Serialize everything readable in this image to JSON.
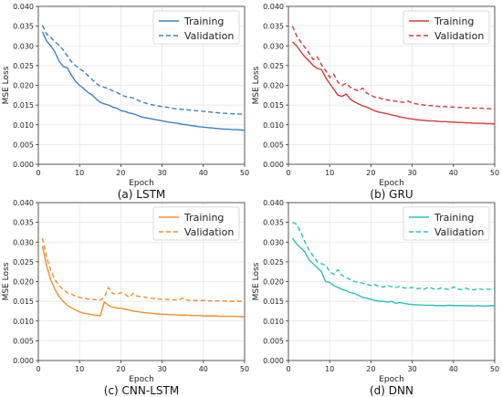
{
  "chart_data": [
    {
      "type": "line",
      "caption": "(a) LSTM",
      "xlabel": "Epoch",
      "ylabel": "MSE Loss",
      "xlim": [
        0,
        50
      ],
      "ylim": [
        0,
        0.04
      ],
      "xticks": [
        "0",
        "10",
        "20",
        "30",
        "40",
        "50"
      ],
      "yticks": [
        "0.000",
        "0.005",
        "0.010",
        "0.015",
        "0.020",
        "0.025",
        "0.030",
        "0.035",
        "0.040"
      ],
      "grid": true,
      "legend_position": "top-right",
      "color": "#3b82c4",
      "series": [
        {
          "name": "Training",
          "style": "solid",
          "x": [
            1,
            2,
            3,
            4,
            5,
            6,
            7,
            8,
            9,
            10,
            11,
            12,
            13,
            14,
            15,
            16,
            17,
            18,
            19,
            20,
            21,
            22,
            23,
            24,
            25,
            26,
            27,
            28,
            29,
            30,
            31,
            32,
            33,
            34,
            35,
            36,
            37,
            38,
            39,
            40,
            41,
            42,
            43,
            44,
            45,
            46,
            47,
            48,
            49,
            50
          ],
          "values": [
            0.0336,
            0.0312,
            0.03,
            0.0285,
            0.0262,
            0.0248,
            0.0245,
            0.0226,
            0.021,
            0.02,
            0.0192,
            0.0182,
            0.0176,
            0.0166,
            0.0157,
            0.0153,
            0.015,
            0.0145,
            0.0142,
            0.0136,
            0.0134,
            0.013,
            0.0128,
            0.0124,
            0.012,
            0.0118,
            0.0116,
            0.0114,
            0.0112,
            0.011,
            0.0108,
            0.0106,
            0.0105,
            0.0103,
            0.0101,
            0.01,
            0.0098,
            0.0097,
            0.0095,
            0.0094,
            0.0093,
            0.0092,
            0.0091,
            0.009,
            0.0089,
            0.0089,
            0.0088,
            0.0088,
            0.0087,
            0.0086
          ]
        },
        {
          "name": "Validation",
          "style": "dashed",
          "x": [
            1,
            2,
            3,
            4,
            5,
            6,
            7,
            8,
            9,
            10,
            11,
            12,
            13,
            14,
            15,
            16,
            17,
            18,
            19,
            20,
            21,
            22,
            23,
            24,
            25,
            26,
            27,
            28,
            29,
            30,
            31,
            32,
            33,
            34,
            35,
            36,
            37,
            38,
            39,
            40,
            41,
            42,
            43,
            44,
            45,
            46,
            47,
            48,
            49,
            50
          ],
          "values": [
            0.0352,
            0.033,
            0.0322,
            0.031,
            0.0302,
            0.029,
            0.0275,
            0.026,
            0.025,
            0.0242,
            0.0235,
            0.0225,
            0.0215,
            0.0205,
            0.0198,
            0.0195,
            0.0192,
            0.0186,
            0.0182,
            0.0176,
            0.0172,
            0.017,
            0.0168,
            0.0163,
            0.0158,
            0.0155,
            0.0152,
            0.015,
            0.0148,
            0.0146,
            0.0145,
            0.0143,
            0.0141,
            0.014,
            0.0139,
            0.0138,
            0.0137,
            0.0136,
            0.0135,
            0.0134,
            0.0133,
            0.0132,
            0.0131,
            0.013,
            0.0129,
            0.0129,
            0.0128,
            0.0128,
            0.0127,
            0.0127
          ]
        }
      ]
    },
    {
      "type": "line",
      "caption": "(b) GRU",
      "xlabel": "Epoch",
      "ylabel": "MSE Loss",
      "xlim": [
        0,
        50
      ],
      "ylim": [
        0,
        0.04
      ],
      "xticks": [
        "0",
        "10",
        "20",
        "30",
        "40",
        "50"
      ],
      "yticks": [
        "0.000",
        "0.005",
        "0.010",
        "0.015",
        "0.020",
        "0.025",
        "0.030",
        "0.035",
        "0.040"
      ],
      "grid": true,
      "legend_position": "top-right",
      "color": "#d63a3a",
      "series": [
        {
          "name": "Training",
          "style": "solid",
          "x": [
            1,
            2,
            3,
            4,
            5,
            6,
            7,
            8,
            9,
            10,
            11,
            12,
            13,
            14,
            15,
            16,
            17,
            18,
            19,
            20,
            21,
            22,
            23,
            24,
            25,
            26,
            27,
            28,
            29,
            30,
            31,
            32,
            33,
            34,
            35,
            36,
            37,
            38,
            39,
            40,
            41,
            42,
            43,
            44,
            45,
            46,
            47,
            48,
            49,
            50
          ],
          "values": [
            0.031,
            0.03,
            0.0285,
            0.0272,
            0.0262,
            0.025,
            0.0243,
            0.024,
            0.022,
            0.0205,
            0.019,
            0.0175,
            0.0172,
            0.0178,
            0.0165,
            0.0158,
            0.0153,
            0.0148,
            0.0145,
            0.014,
            0.0135,
            0.0132,
            0.013,
            0.0128,
            0.0125,
            0.0123,
            0.012,
            0.0118,
            0.0116,
            0.0115,
            0.0113,
            0.0112,
            0.0111,
            0.011,
            0.011,
            0.0109,
            0.0108,
            0.0108,
            0.0107,
            0.0107,
            0.0106,
            0.0106,
            0.0105,
            0.0105,
            0.0104,
            0.0104,
            0.0104,
            0.0103,
            0.0103,
            0.0102
          ]
        },
        {
          "name": "Validation",
          "style": "dashed",
          "x": [
            1,
            2,
            3,
            4,
            5,
            6,
            7,
            8,
            9,
            10,
            11,
            12,
            13,
            14,
            15,
            16,
            17,
            18,
            19,
            20,
            21,
            22,
            23,
            24,
            25,
            26,
            27,
            28,
            29,
            30,
            31,
            32,
            33,
            34,
            35,
            36,
            37,
            38,
            39,
            40,
            41,
            42,
            43,
            44,
            45,
            46,
            47,
            48,
            49,
            50
          ],
          "values": [
            0.035,
            0.0325,
            0.031,
            0.0296,
            0.0282,
            0.0265,
            0.0272,
            0.0252,
            0.0238,
            0.022,
            0.0228,
            0.0208,
            0.02,
            0.0205,
            0.0195,
            0.019,
            0.0186,
            0.0193,
            0.018,
            0.0175,
            0.017,
            0.0168,
            0.0165,
            0.0163,
            0.0161,
            0.016,
            0.0158,
            0.0157,
            0.016,
            0.0155,
            0.0153,
            0.0151,
            0.015,
            0.0149,
            0.0148,
            0.0147,
            0.0146,
            0.0146,
            0.0145,
            0.0145,
            0.0144,
            0.0144,
            0.0143,
            0.0143,
            0.0142,
            0.0142,
            0.0142,
            0.0141,
            0.0141,
            0.014
          ]
        }
      ]
    },
    {
      "type": "line",
      "caption": "(c) CNN-LSTM",
      "xlabel": "Epoch",
      "ylabel": "MSE Loss",
      "xlim": [
        0,
        50
      ],
      "ylim": [
        0,
        0.04
      ],
      "xticks": [
        "0",
        "10",
        "20",
        "30",
        "40",
        "50"
      ],
      "yticks": [
        "0.000",
        "0.005",
        "0.010",
        "0.015",
        "0.020",
        "0.025",
        "0.030",
        "0.035",
        "0.040"
      ],
      "grid": true,
      "legend_position": "top-right",
      "color": "#f28e2b",
      "series": [
        {
          "name": "Training",
          "style": "solid",
          "x": [
            1,
            2,
            3,
            4,
            5,
            6,
            7,
            8,
            9,
            10,
            11,
            12,
            13,
            14,
            15,
            16,
            17,
            18,
            19,
            20,
            21,
            22,
            23,
            24,
            25,
            26,
            27,
            28,
            29,
            30,
            31,
            32,
            33,
            34,
            35,
            36,
            37,
            38,
            39,
            40,
            41,
            42,
            43,
            44,
            45,
            46,
            47,
            48,
            49,
            50
          ],
          "values": [
            0.029,
            0.024,
            0.0205,
            0.018,
            0.0163,
            0.015,
            0.014,
            0.0133,
            0.0128,
            0.0123,
            0.012,
            0.0118,
            0.0116,
            0.0115,
            0.0113,
            0.0148,
            0.014,
            0.0135,
            0.0133,
            0.0132,
            0.013,
            0.0128,
            0.0125,
            0.0124,
            0.0122,
            0.0121,
            0.012,
            0.0119,
            0.0118,
            0.0117,
            0.0117,
            0.0116,
            0.0116,
            0.0115,
            0.0115,
            0.0115,
            0.0114,
            0.0114,
            0.0114,
            0.0113,
            0.0113,
            0.0113,
            0.0113,
            0.0112,
            0.0112,
            0.0112,
            0.0112,
            0.0112,
            0.0111,
            0.0111
          ]
        },
        {
          "name": "Validation",
          "style": "dashed",
          "x": [
            1,
            2,
            3,
            4,
            5,
            6,
            7,
            8,
            9,
            10,
            11,
            12,
            13,
            14,
            15,
            16,
            17,
            18,
            19,
            20,
            21,
            22,
            23,
            24,
            25,
            26,
            27,
            28,
            29,
            30,
            31,
            32,
            33,
            34,
            35,
            36,
            37,
            38,
            39,
            40,
            41,
            42,
            43,
            44,
            45,
            46,
            47,
            48,
            49,
            50
          ],
          "values": [
            0.031,
            0.0262,
            0.0228,
            0.0205,
            0.019,
            0.018,
            0.0172,
            0.0168,
            0.0163,
            0.016,
            0.0158,
            0.0156,
            0.0155,
            0.0154,
            0.0153,
            0.016,
            0.0185,
            0.017,
            0.0168,
            0.0172,
            0.0168,
            0.016,
            0.017,
            0.0163,
            0.0162,
            0.016,
            0.0158,
            0.0157,
            0.0156,
            0.0155,
            0.0155,
            0.0154,
            0.0154,
            0.0153,
            0.0158,
            0.0153,
            0.0152,
            0.0152,
            0.0152,
            0.0152,
            0.0151,
            0.0151,
            0.0151,
            0.0151,
            0.0151,
            0.015,
            0.015,
            0.015,
            0.015,
            0.015
          ]
        }
      ]
    },
    {
      "type": "line",
      "caption": "(d) DNN",
      "xlabel": "Epoch",
      "ylabel": "MSE Loss",
      "xlim": [
        0,
        50
      ],
      "ylim": [
        0,
        0.04
      ],
      "xticks": [
        "0",
        "10",
        "20",
        "30",
        "40",
        "50"
      ],
      "yticks": [
        "0.000",
        "0.005",
        "0.010",
        "0.015",
        "0.020",
        "0.025",
        "0.030",
        "0.035",
        "0.040"
      ],
      "grid": true,
      "legend_position": "top-right",
      "color": "#2bbfbf",
      "series": [
        {
          "name": "Training",
          "style": "solid",
          "x": [
            1,
            2,
            3,
            4,
            5,
            6,
            7,
            8,
            9,
            10,
            11,
            12,
            13,
            14,
            15,
            16,
            17,
            18,
            19,
            20,
            21,
            22,
            23,
            24,
            25,
            26,
            27,
            28,
            29,
            30,
            31,
            32,
            33,
            34,
            35,
            36,
            37,
            38,
            39,
            40,
            41,
            42,
            43,
            44,
            45,
            46,
            47,
            48,
            49,
            50
          ],
          "values": [
            0.031,
            0.0295,
            0.0285,
            0.0275,
            0.0255,
            0.0245,
            0.0235,
            0.0225,
            0.02,
            0.0198,
            0.019,
            0.0185,
            0.018,
            0.0177,
            0.0172,
            0.017,
            0.0165,
            0.016,
            0.0158,
            0.0155,
            0.0152,
            0.015,
            0.015,
            0.0148,
            0.015,
            0.0145,
            0.0147,
            0.0145,
            0.0143,
            0.0142,
            0.0141,
            0.0141,
            0.014,
            0.014,
            0.014,
            0.0139,
            0.0139,
            0.0139,
            0.014,
            0.0139,
            0.0139,
            0.0139,
            0.0139,
            0.0139,
            0.0138,
            0.0139,
            0.0138,
            0.0138,
            0.0139,
            0.0139
          ]
        },
        {
          "name": "Validation",
          "style": "dashed",
          "x": [
            1,
            2,
            3,
            4,
            5,
            6,
            7,
            8,
            9,
            10,
            11,
            12,
            13,
            14,
            15,
            16,
            17,
            18,
            19,
            20,
            21,
            22,
            23,
            24,
            25,
            26,
            27,
            28,
            29,
            30,
            31,
            32,
            33,
            34,
            35,
            36,
            37,
            38,
            39,
            40,
            41,
            42,
            43,
            44,
            45,
            46,
            47,
            48,
            49,
            50
          ],
          "values": [
            0.035,
            0.0345,
            0.0325,
            0.03,
            0.028,
            0.0265,
            0.025,
            0.0245,
            0.0242,
            0.0225,
            0.0218,
            0.023,
            0.0215,
            0.021,
            0.0205,
            0.02,
            0.0198,
            0.0196,
            0.0193,
            0.019,
            0.0192,
            0.0188,
            0.0186,
            0.019,
            0.0187,
            0.0185,
            0.0188,
            0.0184,
            0.0183,
            0.0185,
            0.0182,
            0.0183,
            0.0181,
            0.0186,
            0.0182,
            0.018,
            0.0184,
            0.0181,
            0.018,
            0.0186,
            0.0181,
            0.018,
            0.0183,
            0.018,
            0.0179,
            0.0182,
            0.018,
            0.0181,
            0.018,
            0.0182
          ]
        }
      ]
    }
  ]
}
